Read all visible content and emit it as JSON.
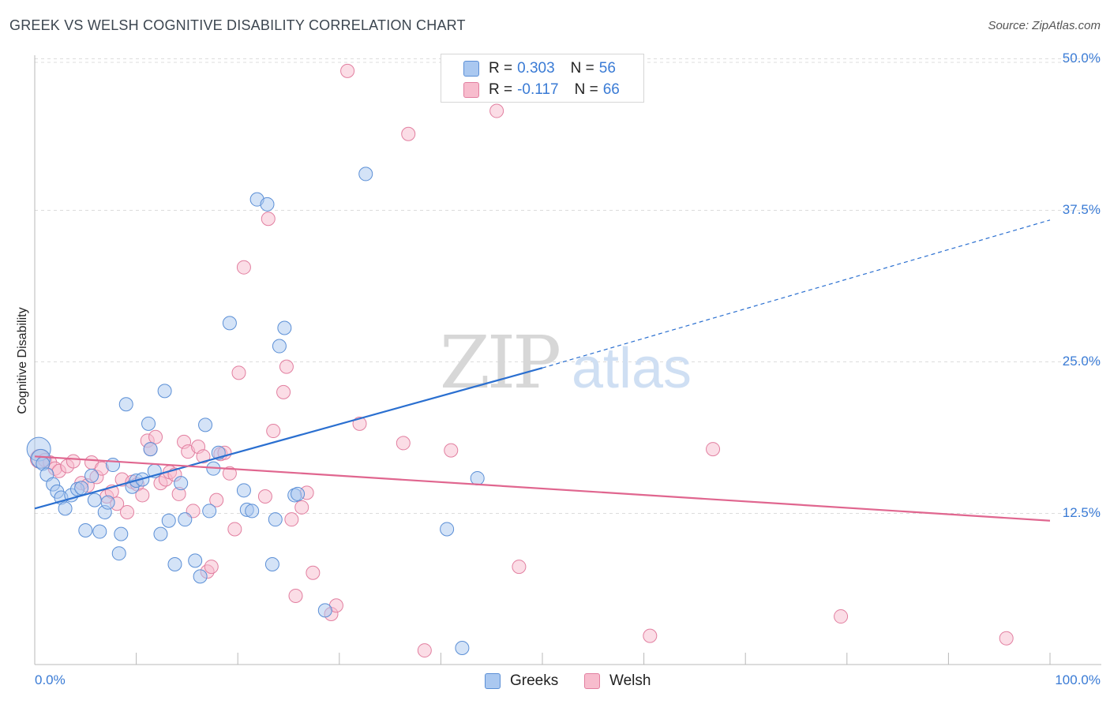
{
  "title": "GREEK VS WELSH COGNITIVE DISABILITY CORRELATION CHART",
  "source": "Source: ZipAtlas.com",
  "watermark": {
    "zip": "ZIP",
    "atlas": "atlas"
  },
  "legend": {
    "r_label": "R =",
    "n_label": "N =",
    "greeks": {
      "r": "0.303",
      "n": "56"
    },
    "welsh": {
      "r": "-0.117",
      "n": "66"
    }
  },
  "bottom_legend": [
    "Greeks",
    "Welsh"
  ],
  "colors": {
    "greeks_fill": "#aac8f0",
    "greeks_stroke": "#5b8fd6",
    "greeks_line": "#2a6fd0",
    "welsh_fill": "#f7bccd",
    "welsh_stroke": "#e27fa0",
    "welsh_line": "#e0668f",
    "tick_text": "#3a7bd5",
    "grid": "#dcdcdc"
  },
  "chart_data": {
    "type": "scatter",
    "title": "GREEK VS WELSH COGNITIVE DISABILITY CORRELATION CHART",
    "xlabel": "",
    "ylabel": "Cognitive Disability",
    "xlim": [
      0,
      100
    ],
    "ylim": [
      0,
      52
    ],
    "x_tick_labels": [
      "0.0%",
      "100.0%"
    ],
    "y_ticks": [
      12.5,
      25.0,
      37.5,
      50.0
    ],
    "y_tick_labels": [
      "12.5%",
      "25.0%",
      "37.5%",
      "50.0%"
    ],
    "grid": true,
    "series": [
      {
        "name": "Greeks",
        "trend": {
          "x0": 0,
          "y0": 12.9,
          "x1": 50,
          "y1": 24.5,
          "dashed_to_x": 100,
          "dashed_to_y": 36.7
        },
        "points": [
          [
            0.4,
            17.8,
            "L"
          ],
          [
            0.6,
            17.0,
            "M"
          ],
          [
            0.8,
            16.6
          ],
          [
            1.2,
            15.7
          ],
          [
            1.8,
            14.9
          ],
          [
            2.2,
            14.3
          ],
          [
            2.6,
            13.8
          ],
          [
            3.0,
            12.9
          ],
          [
            3.6,
            14.0
          ],
          [
            4.2,
            14.5
          ],
          [
            4.6,
            14.6
          ],
          [
            5.0,
            11.1
          ],
          [
            5.6,
            15.6
          ],
          [
            5.9,
            13.6
          ],
          [
            6.4,
            11.0
          ],
          [
            6.9,
            12.6
          ],
          [
            7.2,
            13.4
          ],
          [
            7.7,
            16.5
          ],
          [
            8.3,
            9.2
          ],
          [
            8.5,
            10.8
          ],
          [
            9.0,
            21.5
          ],
          [
            9.6,
            14.7
          ],
          [
            10.0,
            15.2
          ],
          [
            10.6,
            15.3
          ],
          [
            11.2,
            19.9
          ],
          [
            11.4,
            17.8
          ],
          [
            11.8,
            16.0
          ],
          [
            12.4,
            10.8
          ],
          [
            12.8,
            22.6
          ],
          [
            13.2,
            11.9
          ],
          [
            13.8,
            8.3
          ],
          [
            14.4,
            15.0
          ],
          [
            14.8,
            12.0
          ],
          [
            15.8,
            8.6
          ],
          [
            16.3,
            7.3
          ],
          [
            16.8,
            19.8
          ],
          [
            17.2,
            12.7
          ],
          [
            17.6,
            16.2
          ],
          [
            18.1,
            17.5
          ],
          [
            19.2,
            28.2
          ],
          [
            20.6,
            14.4
          ],
          [
            20.9,
            12.8
          ],
          [
            21.4,
            12.7
          ],
          [
            21.9,
            38.4
          ],
          [
            22.9,
            38.0
          ],
          [
            23.4,
            8.3
          ],
          [
            23.7,
            12.0
          ],
          [
            24.1,
            26.3
          ],
          [
            24.6,
            27.8
          ],
          [
            25.6,
            14.0
          ],
          [
            25.9,
            14.1
          ],
          [
            28.6,
            4.5
          ],
          [
            32.6,
            40.5
          ],
          [
            40.6,
            11.2
          ],
          [
            42.1,
            1.4
          ],
          [
            43.6,
            15.4
          ]
        ]
      },
      {
        "name": "Welsh",
        "trend": {
          "x0": 0,
          "y0": 17.2,
          "x1": 100,
          "y1": 11.9
        },
        "points": [
          [
            0.5,
            17.0,
            "M"
          ],
          [
            1.0,
            16.9
          ],
          [
            1.5,
            16.7
          ],
          [
            2.0,
            16.2
          ],
          [
            2.4,
            16.0
          ],
          [
            3.2,
            16.4
          ],
          [
            3.8,
            16.8
          ],
          [
            4.6,
            15.0
          ],
          [
            5.2,
            14.8
          ],
          [
            5.6,
            16.7
          ],
          [
            6.1,
            15.5
          ],
          [
            6.6,
            16.2
          ],
          [
            7.1,
            13.9
          ],
          [
            7.6,
            14.3
          ],
          [
            8.1,
            13.3
          ],
          [
            8.6,
            15.3
          ],
          [
            9.1,
            12.6
          ],
          [
            9.6,
            15.1
          ],
          [
            10.1,
            14.9
          ],
          [
            10.6,
            14.0
          ],
          [
            11.1,
            18.5
          ],
          [
            11.4,
            17.8
          ],
          [
            11.9,
            18.8
          ],
          [
            12.4,
            15.0
          ],
          [
            12.9,
            15.3
          ],
          [
            13.3,
            15.9
          ],
          [
            13.8,
            15.7
          ],
          [
            14.2,
            14.1
          ],
          [
            14.7,
            18.4
          ],
          [
            15.1,
            17.6
          ],
          [
            15.6,
            12.7
          ],
          [
            16.1,
            18.0
          ],
          [
            16.6,
            17.2
          ],
          [
            17.0,
            7.7
          ],
          [
            17.4,
            8.1
          ],
          [
            17.9,
            13.6
          ],
          [
            18.3,
            17.4
          ],
          [
            18.7,
            17.5
          ],
          [
            19.2,
            15.8
          ],
          [
            19.7,
            11.2
          ],
          [
            20.6,
            32.8
          ],
          [
            20.1,
            24.1
          ],
          [
            22.7,
            13.9
          ],
          [
            23.0,
            36.8
          ],
          [
            23.5,
            19.3
          ],
          [
            24.5,
            22.5
          ],
          [
            24.8,
            24.6
          ],
          [
            25.3,
            12.0
          ],
          [
            26.3,
            13.0
          ],
          [
            26.8,
            14.2
          ],
          [
            27.4,
            7.6
          ],
          [
            25.7,
            5.7
          ],
          [
            29.2,
            4.2
          ],
          [
            29.7,
            4.9
          ],
          [
            30.8,
            49.0
          ],
          [
            32.0,
            19.9
          ],
          [
            36.3,
            18.3
          ],
          [
            36.8,
            43.8
          ],
          [
            38.4,
            1.2
          ],
          [
            41.0,
            17.7
          ],
          [
            45.5,
            45.7
          ],
          [
            47.7,
            8.1
          ],
          [
            60.6,
            2.4
          ],
          [
            66.8,
            17.8
          ],
          [
            79.4,
            4.0
          ],
          [
            95.7,
            2.2
          ]
        ]
      }
    ]
  }
}
